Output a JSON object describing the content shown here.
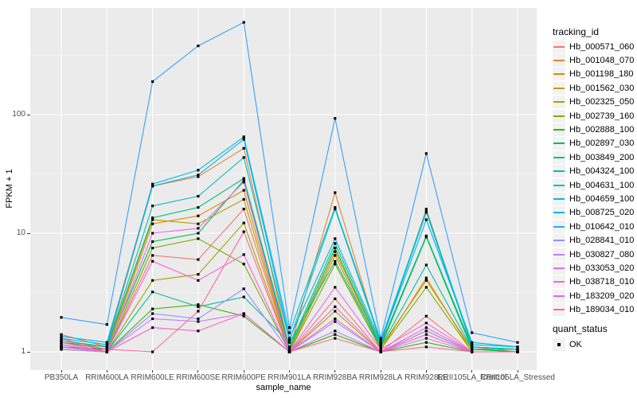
{
  "axes": {
    "y_title": "FPKM + 1",
    "x_title": "sample_name"
  },
  "legend": {
    "tracking_title": "tracking_id",
    "quant_title": "quant_status",
    "quant_items": [
      {
        "label": "OK",
        "marker": "black-square"
      }
    ]
  },
  "colors": {
    "panel_background": "#ebebeb",
    "gridline": "#ffffff",
    "tick_mark": "#333333",
    "tick_text": "#4d4d4d",
    "point": "#000000",
    "legend_key_background": "#f2f2f2"
  },
  "chart_data": {
    "type": "line",
    "title": "",
    "xlabel": "sample_name",
    "ylabel": "FPKM + 1",
    "y_scale": "log10",
    "ylim": [
      0.73,
      790
    ],
    "y_ticks": [
      1,
      10,
      100
    ],
    "y_minor_ticks": [
      3.1623,
      31.623,
      316.23
    ],
    "grid": "on",
    "legend_position": "right",
    "point_marker": "square",
    "categories": [
      "PB350LA",
      "RRIM600LA",
      "RRIM600LE",
      "RRIM600SE",
      "RRIM600PE",
      "RRIM901LA",
      "RRIM928BA",
      "RRIM928LA",
      "RRIM928LE",
      "RRII105LA_Control",
      "RRII105LA_Stressed"
    ],
    "series": [
      {
        "name": "Hb_000571_060",
        "color": "#F8766D",
        "values": [
          1.3,
          1.0,
          6.5,
          6.0,
          16.0,
          1.0,
          2.8,
          1.0,
          2.0,
          1.0,
          1.0
        ]
      },
      {
        "name": "Hb_001048_070",
        "color": "#EA8331",
        "values": [
          1.4,
          1.1,
          25.0,
          30.0,
          52.0,
          1.05,
          22.0,
          1.15,
          16.0,
          1.1,
          1.0
        ]
      },
      {
        "name": "Hb_001198_180",
        "color": "#D89000",
        "values": [
          1.1,
          1.0,
          12.0,
          14.0,
          23.0,
          1.0,
          6.5,
          1.05,
          4.2,
          1.0,
          1.0
        ]
      },
      {
        "name": "Hb_001562_030",
        "color": "#C09B00",
        "values": [
          1.2,
          1.05,
          13.0,
          12.0,
          19.3,
          1.0,
          7.0,
          1.1,
          4.0,
          1.05,
          1.0
        ]
      },
      {
        "name": "Hb_002325_050",
        "color": "#A3A500",
        "values": [
          1.05,
          1.0,
          4.0,
          4.5,
          12.2,
          1.0,
          2.2,
          1.0,
          1.5,
          1.0,
          1.0
        ]
      },
      {
        "name": "Hb_002739_160",
        "color": "#7CAE00",
        "values": [
          1.1,
          1.0,
          7.5,
          9.0,
          5.5,
          1.0,
          5.5,
          1.05,
          3.5,
          1.0,
          1.0
        ]
      },
      {
        "name": "Hb_002888_100",
        "color": "#39B600",
        "values": [
          1.05,
          1.0,
          2.3,
          2.5,
          2.0,
          1.0,
          1.4,
          1.0,
          1.2,
          1.0,
          1.0
        ]
      },
      {
        "name": "Hb_002897_030",
        "color": "#00BB4E",
        "values": [
          1.1,
          1.05,
          8.5,
          10.0,
          28.0,
          1.05,
          7.5,
          1.1,
          9.3,
          1.05,
          1.0
        ]
      },
      {
        "name": "Hb_003849_200",
        "color": "#00BF7D",
        "values": [
          1.2,
          1.1,
          13.5,
          16.5,
          29.0,
          1.1,
          8.2,
          1.15,
          9.5,
          1.1,
          1.05
        ]
      },
      {
        "name": "Hb_004324_100",
        "color": "#00C1A3",
        "values": [
          1.15,
          1.0,
          3.2,
          2.4,
          2.9,
          1.2,
          5.8,
          1.1,
          5.4,
          1.05,
          1.05
        ]
      },
      {
        "name": "Hb_004631_100",
        "color": "#00BFC4",
        "values": [
          1.25,
          1.1,
          17.0,
          20.5,
          43.5,
          1.25,
          16.0,
          1.2,
          15.0,
          1.1,
          1.05
        ]
      },
      {
        "name": "Hb_004659_100",
        "color": "#00BBDA",
        "values": [
          1.3,
          1.15,
          26.0,
          34.0,
          65.0,
          1.45,
          16.5,
          1.25,
          15.5,
          1.15,
          1.1
        ]
      },
      {
        "name": "Hb_008725_020",
        "color": "#00B0F6",
        "values": [
          1.35,
          1.2,
          25.0,
          31.0,
          62.0,
          1.3,
          9.0,
          1.2,
          13.0,
          1.2,
          1.1
        ]
      },
      {
        "name": "Hb_010642_010",
        "color": "#35A2FF",
        "values": [
          1.95,
          1.7,
          190,
          380,
          600,
          1.6,
          93,
          1.3,
          47,
          1.45,
          1.2
        ]
      },
      {
        "name": "Hb_028841_010",
        "color": "#9590FF",
        "values": [
          1.1,
          1.0,
          2.1,
          1.9,
          3.4,
          1.0,
          1.8,
          1.0,
          1.5,
          1.0,
          1.0
        ]
      },
      {
        "name": "Hb_030827_080",
        "color": "#C77CFF",
        "values": [
          1.05,
          1.0,
          1.9,
          1.8,
          2.1,
          1.0,
          1.5,
          1.0,
          1.3,
          1.0,
          1.0
        ]
      },
      {
        "name": "Hb_033053_020",
        "color": "#E76BF3",
        "values": [
          1.15,
          1.0,
          10.0,
          11.0,
          27.0,
          1.0,
          3.5,
          1.05,
          1.75,
          1.0,
          1.0
        ]
      },
      {
        "name": "Hb_038718_010",
        "color": "#FA62DB",
        "values": [
          1.1,
          1.0,
          5.8,
          4.0,
          6.6,
          1.0,
          2.4,
          1.0,
          1.6,
          1.0,
          1.0
        ]
      },
      {
        "name": "Hb_183209_020",
        "color": "#FF62BC",
        "values": [
          1.2,
          1.0,
          1.6,
          1.5,
          2.1,
          1.0,
          1.9,
          1.0,
          1.4,
          1.0,
          1.0
        ]
      },
      {
        "name": "Hb_189034_010",
        "color": "#FF6A98",
        "values": [
          1.25,
          1.05,
          1.0,
          2.2,
          10.3,
          1.0,
          1.3,
          1.0,
          1.1,
          1.0,
          1.0
        ]
      }
    ],
    "quant_status_series": {
      "label": "OK",
      "applies_to": "all points"
    }
  }
}
